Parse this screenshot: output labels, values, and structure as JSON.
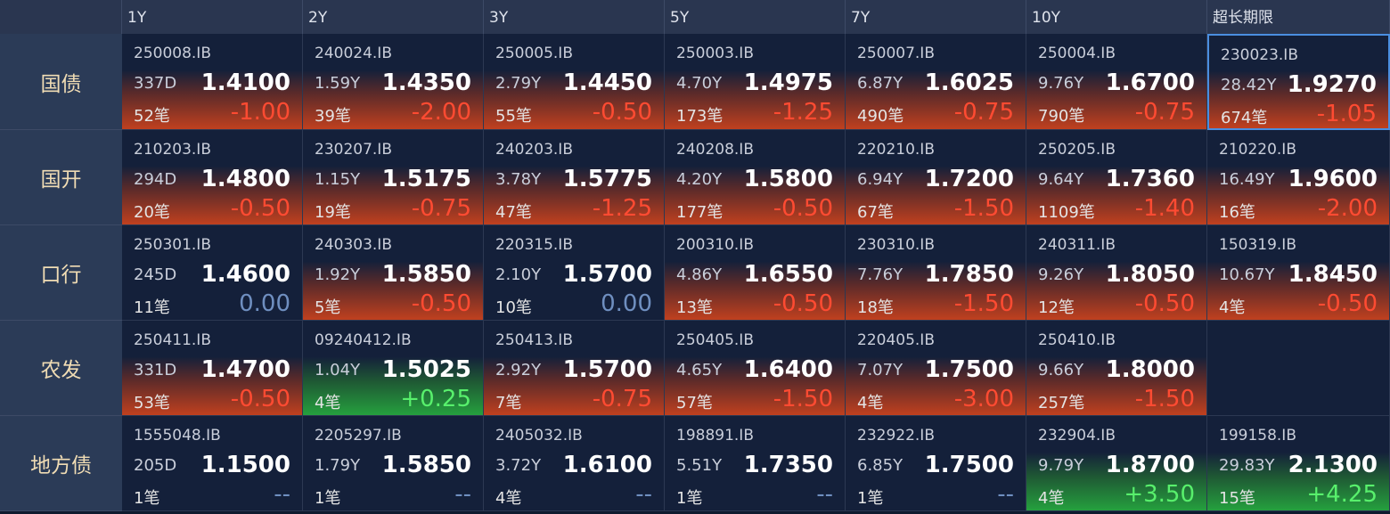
{
  "table": {
    "columns": [
      "1Y",
      "2Y",
      "3Y",
      "5Y",
      "7Y",
      "10Y",
      "超长期限"
    ],
    "rows": [
      {
        "label": "国债",
        "cells": [
          {
            "code": "250008.IB",
            "term": "337D",
            "yield": "1.4100",
            "count": "52笔",
            "change": "-1.00"
          },
          {
            "code": "240024.IB",
            "term": "1.59Y",
            "yield": "1.4350",
            "count": "39笔",
            "change": "-2.00"
          },
          {
            "code": "250005.IB",
            "term": "2.79Y",
            "yield": "1.4450",
            "count": "55笔",
            "change": "-0.50"
          },
          {
            "code": "250003.IB",
            "term": "4.70Y",
            "yield": "1.4975",
            "count": "173笔",
            "change": "-1.25"
          },
          {
            "code": "250007.IB",
            "term": "6.87Y",
            "yield": "1.6025",
            "count": "490笔",
            "change": "-0.75"
          },
          {
            "code": "250004.IB",
            "term": "9.76Y",
            "yield": "1.6700",
            "count": "790笔",
            "change": "-0.75"
          },
          {
            "code": "230023.IB",
            "term": "28.42Y",
            "yield": "1.9270",
            "count": "674笔",
            "change": "-1.05"
          }
        ]
      },
      {
        "label": "国开",
        "cells": [
          {
            "code": "210203.IB",
            "term": "294D",
            "yield": "1.4800",
            "count": "20笔",
            "change": "-0.50"
          },
          {
            "code": "230207.IB",
            "term": "1.15Y",
            "yield": "1.5175",
            "count": "19笔",
            "change": "-0.75"
          },
          {
            "code": "240203.IB",
            "term": "3.78Y",
            "yield": "1.5775",
            "count": "47笔",
            "change": "-1.25"
          },
          {
            "code": "240208.IB",
            "term": "4.20Y",
            "yield": "1.5800",
            "count": "177笔",
            "change": "-0.50"
          },
          {
            "code": "220210.IB",
            "term": "6.94Y",
            "yield": "1.7200",
            "count": "67笔",
            "change": "-1.50"
          },
          {
            "code": "250205.IB",
            "term": "9.64Y",
            "yield": "1.7360",
            "count": "1109笔",
            "change": "-1.40"
          },
          {
            "code": "210220.IB",
            "term": "16.49Y",
            "yield": "1.9600",
            "count": "16笔",
            "change": "-2.00"
          }
        ]
      },
      {
        "label": "口行",
        "cells": [
          {
            "code": "250301.IB",
            "term": "245D",
            "yield": "1.4600",
            "count": "11笔",
            "change": "0.00"
          },
          {
            "code": "240303.IB",
            "term": "1.92Y",
            "yield": "1.5850",
            "count": "5笔",
            "change": "-0.50"
          },
          {
            "code": "220315.IB",
            "term": "2.10Y",
            "yield": "1.5700",
            "count": "10笔",
            "change": "0.00"
          },
          {
            "code": "200310.IB",
            "term": "4.86Y",
            "yield": "1.6550",
            "count": "13笔",
            "change": "-0.50"
          },
          {
            "code": "230310.IB",
            "term": "7.76Y",
            "yield": "1.7850",
            "count": "18笔",
            "change": "-1.50"
          },
          {
            "code": "240311.IB",
            "term": "9.26Y",
            "yield": "1.8050",
            "count": "12笔",
            "change": "-0.50"
          },
          {
            "code": "150319.IB",
            "term": "10.67Y",
            "yield": "1.8450",
            "count": "4笔",
            "change": "-0.50"
          }
        ]
      },
      {
        "label": "农发",
        "cells": [
          {
            "code": "250411.IB",
            "term": "331D",
            "yield": "1.4700",
            "count": "53笔",
            "change": "-0.50"
          },
          {
            "code": "09240412.IB",
            "term": "1.04Y",
            "yield": "1.5025",
            "count": "4笔",
            "change": "+0.25"
          },
          {
            "code": "250413.IB",
            "term": "2.92Y",
            "yield": "1.5700",
            "count": "7笔",
            "change": "-0.75"
          },
          {
            "code": "250405.IB",
            "term": "4.65Y",
            "yield": "1.6400",
            "count": "57笔",
            "change": "-1.50"
          },
          {
            "code": "220405.IB",
            "term": "7.07Y",
            "yield": "1.7500",
            "count": "4笔",
            "change": "-3.00"
          },
          {
            "code": "250410.IB",
            "term": "9.66Y",
            "yield": "1.8000",
            "count": "257笔",
            "change": "-1.50"
          },
          null
        ]
      },
      {
        "label": "地方债",
        "cells": [
          {
            "code": "1555048.IB",
            "term": "205D",
            "yield": "1.1500",
            "count": "1笔",
            "change": "--"
          },
          {
            "code": "2205297.IB",
            "term": "1.79Y",
            "yield": "1.5850",
            "count": "1笔",
            "change": "--"
          },
          {
            "code": "2405032.IB",
            "term": "3.72Y",
            "yield": "1.6100",
            "count": "4笔",
            "change": "--"
          },
          {
            "code": "198891.IB",
            "term": "5.51Y",
            "yield": "1.7350",
            "count": "1笔",
            "change": "--"
          },
          {
            "code": "232922.IB",
            "term": "6.85Y",
            "yield": "1.7500",
            "count": "1笔",
            "change": "--"
          },
          {
            "code": "232904.IB",
            "term": "9.79Y",
            "yield": "1.8700",
            "count": "4笔",
            "change": "+3.50"
          },
          {
            "code": "199158.IB",
            "term": "29.83Y",
            "yield": "2.1300",
            "count": "15笔",
            "change": "+4.25"
          }
        ]
      }
    ]
  }
}
